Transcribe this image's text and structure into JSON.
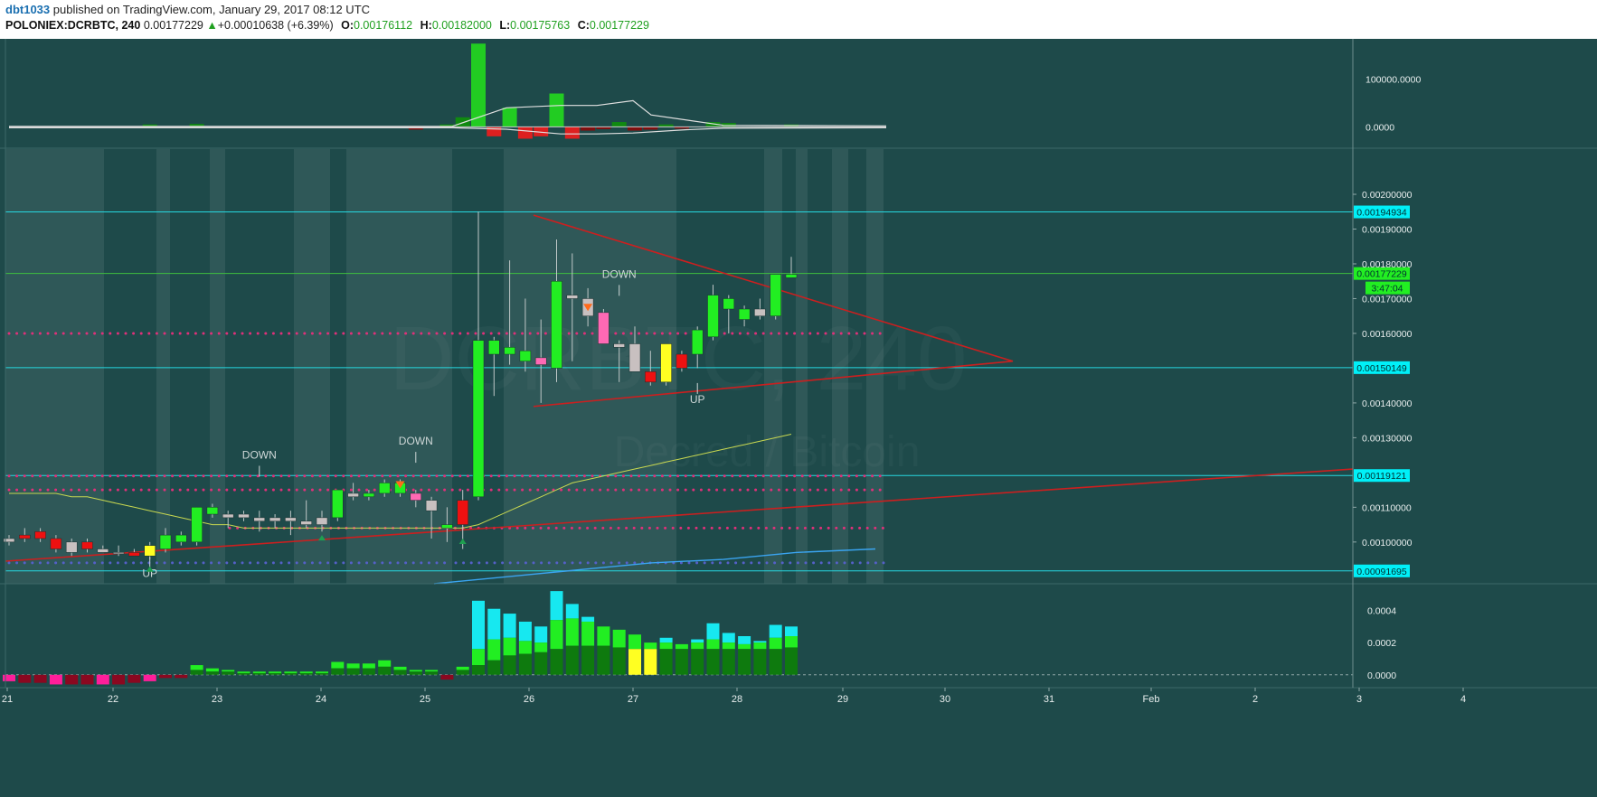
{
  "header": {
    "author": "dbt1033",
    "published": "published on TradingView.com, January 29, 2017 08:12 UTC",
    "symbol": "POLONIEX:DCRBTC, 240",
    "last": "0.00177229",
    "change_arrow": "▲",
    "change": "+0.00010638 (+6.39%)",
    "o_label": "O:",
    "o": "0.00176112",
    "h_label": "H:",
    "h": "0.00182000",
    "l_label": "L:",
    "l": "0.00175763",
    "c_label": "C:",
    "c": "0.00177229"
  },
  "watermark": {
    "line1": "DCRBTC, 240",
    "line2": "Decred / Bitcoin"
  },
  "colors": {
    "background": "#1e4a4a",
    "bull": "#22ee22",
    "bear": "#ee1111",
    "neutral": "#c8c0c0",
    "pink": "#ff69b4",
    "yellow": "#ffff22",
    "hline": "#26d8e0",
    "trend": "#cc1f1f"
  },
  "chart_data": [
    {
      "type": "candlestick",
      "title": "DCRBTC, 240",
      "subtitle": "Decred / Bitcoin",
      "x_tick_labels": [
        "21",
        "22",
        "23",
        "24",
        "25",
        "26",
        "27",
        "28",
        "29",
        "30",
        "31",
        "Feb",
        "2",
        "3",
        "4"
      ],
      "y_tick_labels": [
        "0.00200000",
        "0.00190000",
        "0.00180000",
        "0.00170000",
        "0.00160000",
        "0.00140000",
        "0.00130000",
        "0.00110000",
        "0.00100000"
      ],
      "ylim": [
        0.00088,
        0.00213
      ],
      "horizontal_lines": [
        {
          "label": "0.00194934",
          "value": 0.00194934
        },
        {
          "label": "0.00177229",
          "value": 0.00177229,
          "note": "last price"
        },
        {
          "label": "0.00150149",
          "value": 0.00150149
        },
        {
          "label": "0.00119121",
          "value": 0.00119121
        },
        {
          "label": "0.00091695",
          "value": 0.00091695
        }
      ],
      "countdown_label": "3:47:04",
      "annotations": [
        "DOWN",
        "DOWN",
        "DOWN",
        "UP",
        "UP"
      ],
      "candles": [
        {
          "o": 0.001,
          "h": 0.00102,
          "l": 0.00099,
          "c": 0.00101,
          "color": "neutral"
        },
        {
          "o": 0.00101,
          "h": 0.00104,
          "l": 0.001,
          "c": 0.00102,
          "color": "bear"
        },
        {
          "o": 0.00103,
          "h": 0.00104,
          "l": 0.001,
          "c": 0.00101,
          "color": "bear"
        },
        {
          "o": 0.00101,
          "h": 0.00102,
          "l": 0.00097,
          "c": 0.00098,
          "color": "bear"
        },
        {
          "o": 0.001,
          "h": 0.00101,
          "l": 0.00096,
          "c": 0.00097,
          "color": "neutral"
        },
        {
          "o": 0.001,
          "h": 0.00101,
          "l": 0.00097,
          "c": 0.00098,
          "color": "bear"
        },
        {
          "o": 0.00098,
          "h": 0.00099,
          "l": 0.00097,
          "c": 0.00097,
          "color": "neutral"
        },
        {
          "o": 0.00097,
          "h": 0.00099,
          "l": 0.00096,
          "c": 0.00097,
          "color": "neutral"
        },
        {
          "o": 0.00097,
          "h": 0.00098,
          "l": 0.00096,
          "c": 0.00096,
          "color": "bear"
        },
        {
          "o": 0.00096,
          "h": 0.001,
          "l": 0.00095,
          "c": 0.00099,
          "color": "yellow"
        },
        {
          "o": 0.00098,
          "h": 0.00104,
          "l": 0.00097,
          "c": 0.00102,
          "color": "bull"
        },
        {
          "o": 0.001,
          "h": 0.00103,
          "l": 0.00099,
          "c": 0.00102,
          "color": "bull"
        },
        {
          "o": 0.001,
          "h": 0.0011,
          "l": 0.00099,
          "c": 0.0011,
          "color": "bull"
        },
        {
          "o": 0.00108,
          "h": 0.00111,
          "l": 0.00107,
          "c": 0.0011,
          "color": "bull"
        },
        {
          "o": 0.00108,
          "h": 0.00109,
          "l": 0.00104,
          "c": 0.00107,
          "color": "neutral"
        },
        {
          "o": 0.00108,
          "h": 0.00109,
          "l": 0.00106,
          "c": 0.00107,
          "color": "neutral"
        },
        {
          "o": 0.00107,
          "h": 0.00109,
          "l": 0.00103,
          "c": 0.00106,
          "color": "neutral"
        },
        {
          "o": 0.00107,
          "h": 0.00108,
          "l": 0.00104,
          "c": 0.00106,
          "color": "neutral"
        },
        {
          "o": 0.00107,
          "h": 0.00109,
          "l": 0.00102,
          "c": 0.00106,
          "color": "neutral"
        },
        {
          "o": 0.00106,
          "h": 0.00112,
          "l": 0.00104,
          "c": 0.00105,
          "color": "neutral"
        },
        {
          "o": 0.00105,
          "h": 0.00109,
          "l": 0.00103,
          "c": 0.00107,
          "color": "neutral"
        },
        {
          "o": 0.00107,
          "h": 0.00115,
          "l": 0.00106,
          "c": 0.00115,
          "color": "bull"
        },
        {
          "o": 0.00113,
          "h": 0.00117,
          "l": 0.00112,
          "c": 0.00114,
          "color": "neutral"
        },
        {
          "o": 0.00113,
          "h": 0.00115,
          "l": 0.00112,
          "c": 0.00114,
          "color": "bull"
        },
        {
          "o": 0.00114,
          "h": 0.00118,
          "l": 0.00113,
          "c": 0.00117,
          "color": "bull"
        },
        {
          "o": 0.00114,
          "h": 0.00118,
          "l": 0.00113,
          "c": 0.00117,
          "color": "bull"
        },
        {
          "o": 0.00114,
          "h": 0.00115,
          "l": 0.0011,
          "c": 0.00112,
          "color": "pink"
        },
        {
          "o": 0.00112,
          "h": 0.00113,
          "l": 0.00101,
          "c": 0.00109,
          "color": "neutral"
        },
        {
          "o": 0.00104,
          "h": 0.0011,
          "l": 0.001,
          "c": 0.00105,
          "color": "bull"
        },
        {
          "o": 0.00112,
          "h": 0.00115,
          "l": 0.00098,
          "c": 0.00105,
          "color": "bear"
        },
        {
          "o": 0.00113,
          "h": 0.00195,
          "l": 0.00112,
          "c": 0.00158,
          "color": "bull"
        },
        {
          "o": 0.00154,
          "h": 0.00159,
          "l": 0.00142,
          "c": 0.00158,
          "color": "bull"
        },
        {
          "o": 0.00154,
          "h": 0.00181,
          "l": 0.00151,
          "c": 0.00156,
          "color": "bull"
        },
        {
          "o": 0.00152,
          "h": 0.0017,
          "l": 0.00149,
          "c": 0.00155,
          "color": "bull"
        },
        {
          "o": 0.00153,
          "h": 0.00164,
          "l": 0.0014,
          "c": 0.00151,
          "color": "pink"
        },
        {
          "o": 0.0015,
          "h": 0.00187,
          "l": 0.00146,
          "c": 0.00175,
          "color": "bull"
        },
        {
          "o": 0.00171,
          "h": 0.00183,
          "l": 0.00152,
          "c": 0.0017,
          "color": "neutral"
        },
        {
          "o": 0.0017,
          "h": 0.00173,
          "l": 0.00162,
          "c": 0.00165,
          "color": "neutral"
        },
        {
          "o": 0.00166,
          "h": 0.00167,
          "l": 0.00157,
          "c": 0.00157,
          "color": "pink"
        },
        {
          "o": 0.00157,
          "h": 0.00158,
          "l": 0.00146,
          "c": 0.00156,
          "color": "neutral"
        },
        {
          "o": 0.00157,
          "h": 0.00162,
          "l": 0.00149,
          "c": 0.00149,
          "color": "neutral"
        },
        {
          "o": 0.00149,
          "h": 0.00155,
          "l": 0.00145,
          "c": 0.00146,
          "color": "bear"
        },
        {
          "o": 0.00146,
          "h": 0.00157,
          "l": 0.00145,
          "c": 0.00157,
          "color": "yellow"
        },
        {
          "o": 0.00154,
          "h": 0.00155,
          "l": 0.00149,
          "c": 0.0015,
          "color": "bear"
        },
        {
          "o": 0.00154,
          "h": 0.00162,
          "l": 0.0015,
          "c": 0.00161,
          "color": "bull"
        },
        {
          "o": 0.00159,
          "h": 0.00174,
          "l": 0.00158,
          "c": 0.00171,
          "color": "bull"
        },
        {
          "o": 0.00167,
          "h": 0.00171,
          "l": 0.0016,
          "c": 0.0017,
          "color": "bull"
        },
        {
          "o": 0.00164,
          "h": 0.00168,
          "l": 0.00162,
          "c": 0.00167,
          "color": "bull"
        },
        {
          "o": 0.00165,
          "h": 0.0017,
          "l": 0.00164,
          "c": 0.00167,
          "color": "neutral"
        },
        {
          "o": 0.00165,
          "h": 0.00177,
          "l": 0.00164,
          "c": 0.00177,
          "color": "bull"
        },
        {
          "o": 0.00176,
          "h": 0.00182,
          "l": 0.00176,
          "c": 0.00177,
          "color": "bull"
        }
      ]
    },
    {
      "type": "bar",
      "title": "upper indicator",
      "y_tick_labels": [
        "100000.0000",
        "0.0000"
      ],
      "ylim": [
        -45000,
        185000
      ]
    },
    {
      "type": "bar",
      "title": "lower indicator",
      "y_tick_labels": [
        "0.0004",
        "0.0002",
        "0.0000"
      ],
      "ylim": [
        -8e-05,
        0.00056
      ]
    }
  ]
}
